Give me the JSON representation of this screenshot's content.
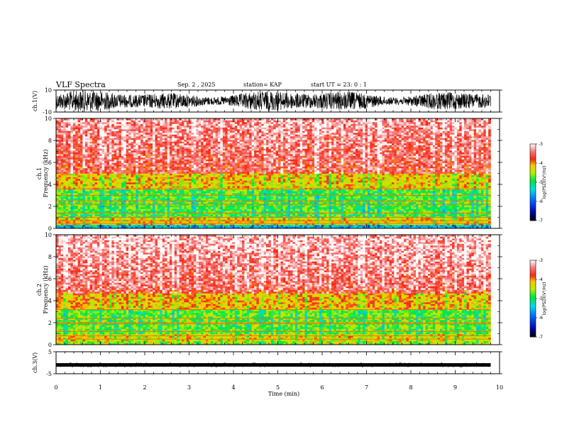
{
  "header": {
    "title": "VLF Spectra",
    "date": "Sep. 2  , 2025",
    "station": "station= KAP",
    "start_time": "start  UT  =   23: 0   : 1"
  },
  "chart_data": [
    {
      "id": "ch1-waveform",
      "type": "line",
      "ylabel": "ch.1(V)",
      "ylim": [
        -10,
        10
      ],
      "ytick_labels": [
        "10",
        "-10"
      ],
      "xlim": [
        0,
        10
      ],
      "data_extent_min": 9.8,
      "signal": "noise waveform, amplitude roughly +/-4 V around 0"
    },
    {
      "id": "ch1-spectrogram",
      "type": "heatmap",
      "ylabel_top": "ch.1",
      "ylabel": "Frequency  (kHz)",
      "ylim": [
        0,
        10
      ],
      "ytick_labels": [
        "0",
        "2",
        "4",
        "6",
        "8",
        "10"
      ],
      "xlim": [
        0,
        10
      ],
      "data_extent_min": 9.8,
      "colorbar": {
        "label": "log(PSD)(V²/Hz)",
        "range": [
          -7,
          -3
        ],
        "tick_labels": [
          "-3",
          "-4",
          "-5",
          "-6",
          "-7"
        ]
      },
      "bands": [
        {
          "freq_khz": [
            0,
            0.3
          ],
          "level": -5.5
        },
        {
          "freq_khz": [
            0.3,
            1.0
          ],
          "level": -4.2
        },
        {
          "freq_khz": [
            1.0,
            3.6
          ],
          "level": -4.8
        },
        {
          "freq_khz": [
            3.6,
            5.0
          ],
          "level": -4.2
        },
        {
          "freq_khz": [
            5.0,
            10.0
          ],
          "level": -3.6
        }
      ],
      "lines_khz": [
        0.45,
        0.7,
        1.0,
        1.4,
        2.2,
        2.5,
        3.0,
        3.6
      ]
    },
    {
      "id": "ch2-spectrogram",
      "type": "heatmap",
      "ylabel_top": "ch.2",
      "ylabel": "Frequency  (kHz)",
      "ylim": [
        0,
        10
      ],
      "ytick_labels": [
        "0",
        "2",
        "4",
        "6",
        "8",
        "10"
      ],
      "xlim": [
        0,
        10
      ],
      "data_extent_min": 9.8,
      "colorbar": {
        "label": "log(PSD)(V²/Hz)",
        "range": [
          -7,
          -3
        ],
        "tick_labels": [
          "-3",
          "-4",
          "-5",
          "-6",
          "-7"
        ]
      },
      "bands": [
        {
          "freq_khz": [
            0,
            0.4
          ],
          "level": -4.5
        },
        {
          "freq_khz": [
            0.4,
            1.0
          ],
          "level": -4.3
        },
        {
          "freq_khz": [
            1.0,
            3.2
          ],
          "level": -4.7
        },
        {
          "freq_khz": [
            3.2,
            4.6
          ],
          "level": -4.1
        },
        {
          "freq_khz": [
            4.6,
            10.0
          ],
          "level": -3.5
        }
      ],
      "lines_khz": [
        0.5,
        0.8,
        1.2,
        1.9,
        2.0,
        2.4,
        3.2
      ]
    },
    {
      "id": "ch3-waveform",
      "type": "line",
      "ylabel": "ch.3(V)",
      "ylim": [
        -5,
        5
      ],
      "ytick_labels": [
        "5",
        "-5"
      ],
      "xlim": [
        0,
        10
      ],
      "data_extent_min": 9.8,
      "signal": "thin band around -1 V"
    }
  ],
  "x_axis": {
    "label": "Time  (min)",
    "tick_labels": [
      "0",
      "1",
      "2",
      "3",
      "4",
      "5",
      "6",
      "7",
      "8",
      "9",
      "10"
    ]
  },
  "colors": {
    "trace": "#000000",
    "frame": "#000000"
  }
}
